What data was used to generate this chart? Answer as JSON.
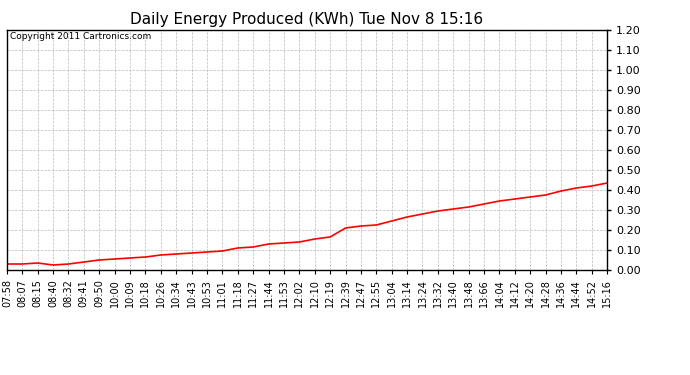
{
  "title": "Daily Energy Produced (KWh) Tue Nov 8 15:16",
  "copyright_text": "Copyright 2011 Cartronics.com",
  "x_labels": [
    "07:58",
    "08:07",
    "08:15",
    "08:40",
    "08:32",
    "09:41",
    "09:50",
    "10:00",
    "10:09",
    "10:18",
    "10:26",
    "10:34",
    "10:43",
    "10:53",
    "11:01",
    "11:18",
    "11:27",
    "11:44",
    "11:53",
    "12:02",
    "12:10",
    "12:19",
    "12:39",
    "12:47",
    "12:55",
    "13:04",
    "13:14",
    "13:24",
    "13:32",
    "13:40",
    "13:48",
    "13:66",
    "14:04",
    "14:12",
    "14:20",
    "14:28",
    "14:36",
    "14:44",
    "14:52",
    "15:16"
  ],
  "y_values": [
    0.03,
    0.03,
    0.035,
    0.025,
    0.03,
    0.04,
    0.05,
    0.055,
    0.06,
    0.065,
    0.075,
    0.08,
    0.085,
    0.09,
    0.095,
    0.11,
    0.115,
    0.13,
    0.135,
    0.14,
    0.155,
    0.165,
    0.21,
    0.22,
    0.225,
    0.245,
    0.265,
    0.28,
    0.295,
    0.305,
    0.315,
    0.33,
    0.345,
    0.355,
    0.365,
    0.375,
    0.395,
    0.41,
    0.42,
    0.435
  ],
  "line_color": "#ff0000",
  "background_color": "#ffffff",
  "plot_bg_color": "#ffffff",
  "grid_color": "#aaaaaa",
  "ylim": [
    0.0,
    1.2
  ],
  "yticks": [
    0.0,
    0.1,
    0.2,
    0.3,
    0.4,
    0.5,
    0.6,
    0.7,
    0.8,
    0.9,
    1.0,
    1.1,
    1.2
  ],
  "title_fontsize": 11,
  "copyright_fontsize": 6.5,
  "tick_fontsize": 7,
  "ytick_fontsize": 8,
  "line_width": 1.2
}
